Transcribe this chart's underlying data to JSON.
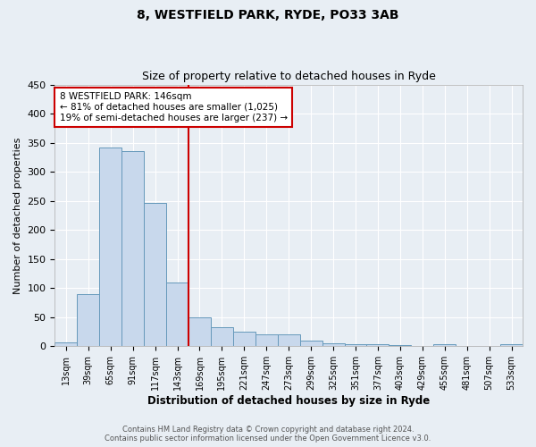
{
  "title1": "8, WESTFIELD PARK, RYDE, PO33 3AB",
  "title2": "Size of property relative to detached houses in Ryde",
  "xlabel": "Distribution of detached houses by size in Ryde",
  "ylabel": "Number of detached properties",
  "bar_labels": [
    "13sqm",
    "39sqm",
    "65sqm",
    "91sqm",
    "117sqm",
    "143sqm",
    "169sqm",
    "195sqm",
    "221sqm",
    "247sqm",
    "273sqm",
    "299sqm",
    "325sqm",
    "351sqm",
    "377sqm",
    "403sqm",
    "429sqm",
    "455sqm",
    "481sqm",
    "507sqm",
    "533sqm"
  ],
  "bar_values": [
    7,
    90,
    341,
    335,
    246,
    110,
    50,
    33,
    25,
    21,
    21,
    10,
    5,
    4,
    3,
    2,
    1,
    3,
    1,
    1,
    3
  ],
  "bar_color": "#c8d8ec",
  "bar_edge_color": "#6699bb",
  "vline_x": 5.5,
  "vline_color": "#cc0000",
  "annotation_line1": "8 WESTFIELD PARK: 146sqm",
  "annotation_line2": "← 81% of detached houses are smaller (1,025)",
  "annotation_line3": "19% of semi-detached houses are larger (237) →",
  "annotation_box_color": "#cc0000",
  "ylim": [
    0,
    450
  ],
  "yticks": [
    0,
    50,
    100,
    150,
    200,
    250,
    300,
    350,
    400,
    450
  ],
  "footer1": "Contains HM Land Registry data © Crown copyright and database right 2024.",
  "footer2": "Contains public sector information licensed under the Open Government Licence v3.0.",
  "bg_color": "#e8eef4",
  "plot_bg_color": "#e8eef4",
  "grid_color": "#ffffff"
}
